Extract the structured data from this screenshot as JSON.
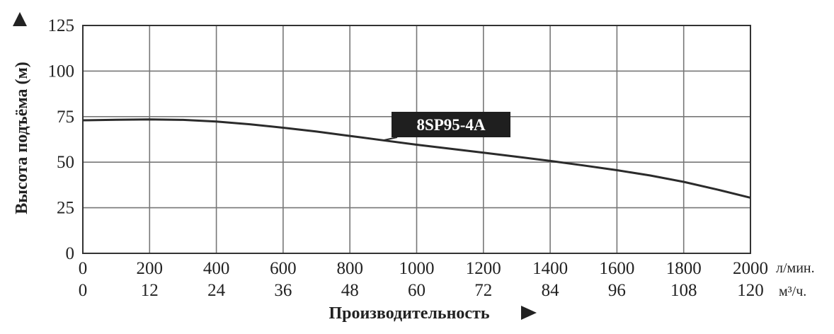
{
  "chart_data": {
    "type": "line",
    "ylabel": "Высота подъёма (м)",
    "xlabel": "Производительность",
    "ylim": [
      0,
      125
    ],
    "y_ticks": [
      "0",
      "25",
      "50",
      "75",
      "100",
      "125"
    ],
    "x_ticks_lmin": [
      "0",
      "200",
      "400",
      "600",
      "800",
      "1000",
      "1200",
      "1400",
      "1600",
      "1800",
      "2000"
    ],
    "x_ticks_m3h": [
      "0",
      "12",
      "24",
      "36",
      "48",
      "60",
      "72",
      "84",
      "96",
      "108",
      "120"
    ],
    "x_unit_primary": "л/мин.",
    "x_unit_secondary": "м³/ч.",
    "xlim": [
      0,
      2000
    ],
    "grid": true,
    "series": [
      {
        "name": "8SP95-4A",
        "x": [
          0,
          100,
          200,
          300,
          400,
          500,
          600,
          700,
          800,
          900,
          1000,
          1100,
          1200,
          1300,
          1400,
          1500,
          1600,
          1700,
          1800,
          1900,
          2000
        ],
        "y": [
          73,
          73.3,
          73.5,
          73.2,
          72.3,
          70.8,
          68.9,
          66.8,
          64.4,
          62,
          59.6,
          57.4,
          55.2,
          53,
          50.7,
          48.2,
          45.6,
          42.7,
          39.2,
          35,
          30.5
        ]
      }
    ]
  }
}
